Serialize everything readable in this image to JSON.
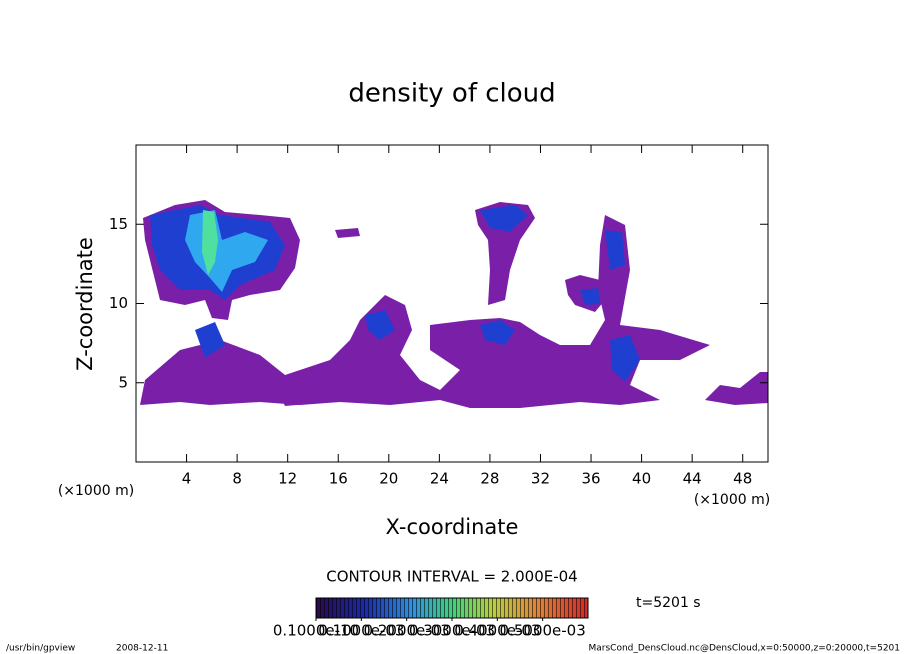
{
  "chart_data": {
    "type": "contour",
    "title": "density of cloud",
    "xlabel": "X-coordinate",
    "ylabel": "Z-coordinate",
    "axis_unit": "(×1000 m)",
    "xlim": [
      0,
      50
    ],
    "xticks": [
      4,
      8,
      12,
      16,
      20,
      24,
      28,
      32,
      36,
      40,
      44,
      48
    ],
    "ylim": [
      0,
      20
    ],
    "yticks": [
      5,
      10,
      15
    ],
    "contour_interval": "CONTOUR INTERVAL = 2.000E-04",
    "time": "t=5201 s",
    "colorbar": {
      "lim": [
        0,
        0.0006
      ],
      "ticks": [
        {
          "value": 1e-11,
          "label": "0.1000e-10"
        },
        {
          "value": 0.0001,
          "label": "0.1000e-03"
        },
        {
          "value": 0.0002,
          "label": "0.2000e-03"
        },
        {
          "value": 0.0003,
          "label": "0.3000e-03"
        },
        {
          "value": 0.0004,
          "label": "0.4000e-03"
        },
        {
          "value": 0.0005,
          "label": "0.5000e-03"
        }
      ]
    },
    "footer_program": "/usr/bin/gpview",
    "footer_date": "2008-12-11",
    "footer_source": "MarsCond_DensCloud.nc@DensCloud,x=0:50000,z=0:20000,t=5201"
  }
}
